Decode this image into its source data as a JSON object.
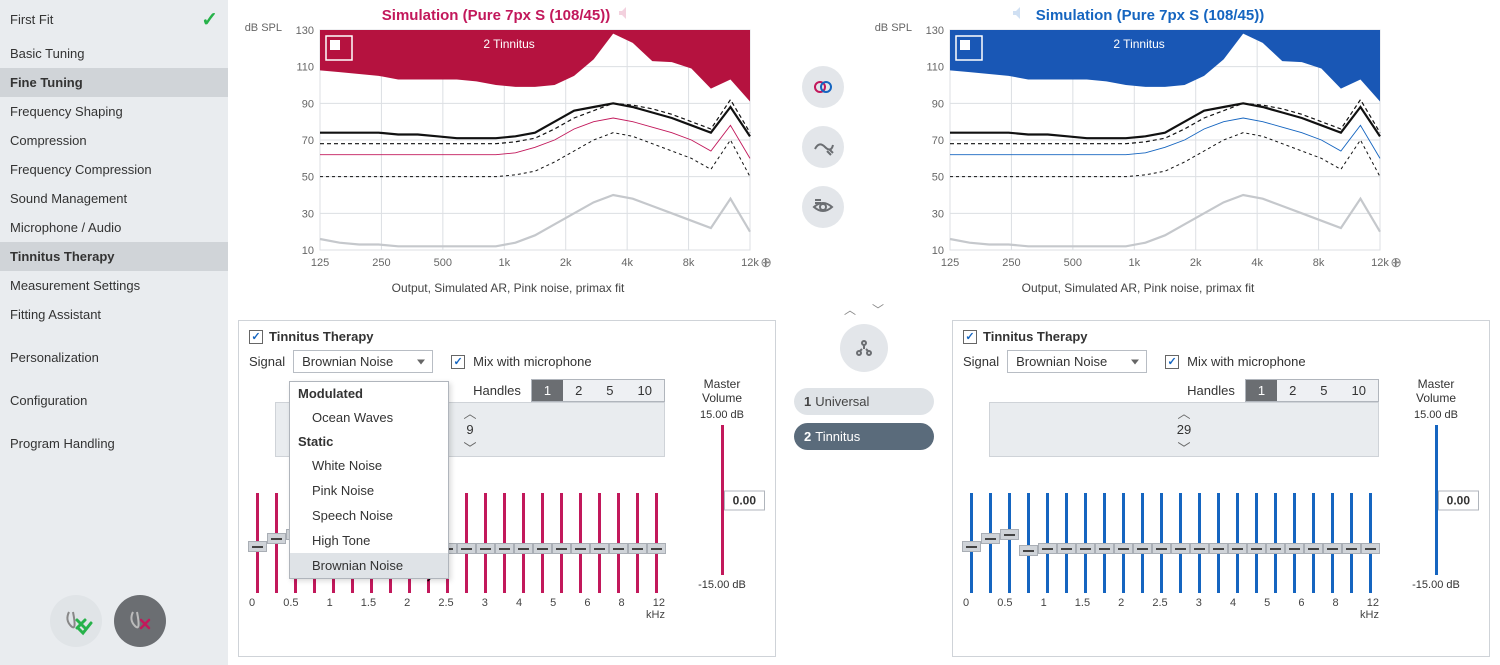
{
  "sidebar": {
    "items": [
      {
        "label": "First Fit",
        "bold": false,
        "selected": false,
        "check": true
      },
      {
        "label": "Basic Tuning",
        "bold": false,
        "selected": false
      },
      {
        "label": "Fine Tuning",
        "bold": true,
        "selected": true
      },
      {
        "label": "Frequency Shaping"
      },
      {
        "label": "Compression"
      },
      {
        "label": "Frequency Compression"
      },
      {
        "label": "Sound Management"
      },
      {
        "label": "Microphone / Audio"
      },
      {
        "label": "Tinnitus Therapy",
        "bold": true,
        "selected": true
      },
      {
        "label": "Measurement Settings"
      },
      {
        "label": "Fitting Assistant"
      },
      {
        "label": "Personalization",
        "spaced": true
      },
      {
        "label": "Configuration",
        "spaced": true
      },
      {
        "label": "Program Handling",
        "spaced": true
      }
    ]
  },
  "charts": {
    "left": {
      "title": "Simulation (Pure 7px S (108/45))",
      "title_color": "#c2185b",
      "accent": "#c2185b",
      "ylabel": "dB SPL",
      "yticks": [
        130,
        110,
        90,
        70,
        50,
        30,
        10
      ],
      "xticks": [
        "125",
        "250",
        "500",
        "1k",
        "2k",
        "4k",
        "8k",
        "12k"
      ],
      "xunit": "Hz",
      "badge": "2 Tinnitus",
      "caption": "Output, Simulated AR, Pink noise, primax fit",
      "fill_color": "#b5123f",
      "grid_color": "#dcdfe3",
      "background": "#ffffff",
      "overlay_color": "#c5c8cc",
      "fill_curve": [
        108,
        107,
        106,
        105,
        103,
        103,
        103,
        103,
        102,
        100,
        99,
        99,
        100,
        105,
        114,
        128,
        123,
        113,
        112.5,
        109,
        98,
        103,
        91
      ],
      "curves": [
        {
          "color": "#111",
          "width": 2.2,
          "dash": "",
          "y": [
            74,
            74,
            74,
            74,
            73,
            73,
            72,
            71,
            71,
            71,
            72,
            74,
            80,
            86,
            88,
            90,
            88,
            85,
            82,
            78,
            74,
            88,
            72
          ]
        },
        {
          "color": "#111",
          "width": 1.2,
          "dash": "4 3",
          "y": [
            68,
            68,
            68,
            68,
            68,
            68,
            68,
            68,
            68,
            68,
            69,
            71,
            76,
            82,
            86,
            90,
            89,
            87,
            84,
            80,
            76,
            92,
            74
          ]
        },
        {
          "color": "#c2185b",
          "width": 0.9,
          "dash": "",
          "y": [
            62,
            62,
            62,
            62,
            62,
            62,
            62,
            62,
            62,
            62,
            63,
            66,
            70,
            76,
            80,
            82,
            80,
            77,
            74,
            70,
            64,
            78,
            60
          ]
        },
        {
          "color": "#111",
          "width": 1.0,
          "dash": "3 3",
          "y": [
            50,
            50,
            50,
            50,
            50,
            50,
            50,
            50,
            50,
            50,
            51,
            53,
            58,
            64,
            70,
            74,
            72,
            68,
            64,
            60,
            54,
            70,
            50
          ]
        },
        {
          "color": "#c5c8cc",
          "width": 2.2,
          "dash": "",
          "y": [
            16,
            14,
            13,
            13,
            12,
            12,
            12,
            12,
            12,
            12,
            14,
            18,
            24,
            30,
            36,
            40,
            38,
            34,
            30,
            26,
            22,
            38,
            20
          ]
        }
      ]
    },
    "right": {
      "title": "Simulation (Pure 7px S (108/45))",
      "title_color": "#1565c0",
      "accent": "#1565c0",
      "ylabel": "dB SPL",
      "yticks": [
        130,
        110,
        90,
        70,
        50,
        30,
        10
      ],
      "xticks": [
        "125",
        "250",
        "500",
        "1k",
        "2k",
        "4k",
        "8k",
        "12k"
      ],
      "xunit": "Hz",
      "badge": "2 Tinnitus",
      "caption": "Output, Simulated AR, Pink noise, primax fit",
      "fill_color": "#1957b5",
      "grid_color": "#dcdfe3",
      "background": "#ffffff",
      "overlay_color": "#c5c8cc",
      "fill_curve": [
        108,
        107,
        106,
        105,
        103,
        103,
        103,
        103,
        102,
        100,
        99,
        99,
        100,
        105,
        114,
        128,
        123,
        113,
        112.5,
        109,
        98,
        103,
        91
      ],
      "curves": [
        {
          "color": "#111",
          "width": 2.2,
          "dash": "",
          "y": [
            74,
            74,
            74,
            74,
            73,
            73,
            72,
            71,
            71,
            71,
            72,
            74,
            80,
            86,
            88,
            90,
            88,
            85,
            82,
            78,
            74,
            88,
            72
          ]
        },
        {
          "color": "#111",
          "width": 1.2,
          "dash": "4 3",
          "y": [
            68,
            68,
            68,
            68,
            68,
            68,
            68,
            68,
            68,
            68,
            69,
            71,
            76,
            82,
            86,
            90,
            89,
            87,
            84,
            80,
            76,
            92,
            74
          ]
        },
        {
          "color": "#1565c0",
          "width": 0.9,
          "dash": "",
          "y": [
            62,
            62,
            62,
            62,
            62,
            62,
            62,
            62,
            62,
            62,
            63,
            66,
            70,
            76,
            80,
            82,
            80,
            77,
            74,
            70,
            64,
            78,
            60
          ]
        },
        {
          "color": "#111",
          "width": 1.0,
          "dash": "3 3",
          "y": [
            50,
            50,
            50,
            50,
            50,
            50,
            50,
            50,
            50,
            50,
            51,
            53,
            58,
            64,
            70,
            74,
            72,
            68,
            64,
            60,
            54,
            70,
            50
          ]
        },
        {
          "color": "#c5c8cc",
          "width": 2.2,
          "dash": "",
          "y": [
            16,
            14,
            13,
            13,
            12,
            12,
            12,
            12,
            12,
            12,
            14,
            18,
            24,
            30,
            36,
            40,
            38,
            34,
            30,
            26,
            22,
            38,
            20
          ]
        }
      ]
    }
  },
  "center_tools": {
    "icons": [
      "couple-icon",
      "adjust-icon",
      "view-icon"
    ]
  },
  "programs": {
    "icon": "program-icon",
    "list": [
      {
        "num": "1",
        "label": "Universal",
        "active": false
      },
      {
        "num": "2",
        "label": "Tinnitus",
        "active": true
      }
    ]
  },
  "panel_left": {
    "title": "Tinnitus Therapy",
    "checked": true,
    "signal_label": "Signal",
    "signal_value": "Brownian Noise",
    "mix_label": "Mix with microphone",
    "mix_checked": true,
    "handles_label": "Handles",
    "handles_options": [
      "1",
      "2",
      "5",
      "10"
    ],
    "handles_active": "1",
    "stepper_value": "9",
    "xticks": [
      "0",
      "0.5",
      "1",
      "1.5",
      "2",
      "2.5",
      "3",
      "4",
      "5",
      "6",
      "8",
      "12"
    ],
    "xunit": "kHz",
    "slider_color": "#c2185b",
    "handle_count": 22,
    "handle_positions": [
      48,
      40,
      36,
      52,
      50,
      50,
      50,
      50,
      50,
      50,
      50,
      50,
      50,
      50,
      50,
      50,
      50,
      50,
      50,
      50,
      50,
      50
    ],
    "master": {
      "label": "Master Volume",
      "max": "15.00 dB",
      "min": "-15.00 dB",
      "value": "0.00"
    },
    "dropdown": {
      "visible": true,
      "groups": [
        {
          "header": "Modulated",
          "items": [
            "Ocean Waves"
          ]
        },
        {
          "header": "Static",
          "items": [
            "White Noise",
            "Pink Noise",
            "Speech Noise",
            "High Tone",
            "Brownian Noise"
          ]
        }
      ],
      "hover": "Brownian Noise"
    }
  },
  "panel_right": {
    "title": "Tinnitus Therapy",
    "checked": true,
    "signal_label": "Signal",
    "signal_value": "Brownian Noise",
    "mix_label": "Mix with microphone",
    "mix_checked": true,
    "handles_label": "Handles",
    "handles_options": [
      "1",
      "2",
      "5",
      "10"
    ],
    "handles_active": "1",
    "stepper_value": "29",
    "xticks": [
      "0",
      "0.5",
      "1",
      "1.5",
      "2",
      "2.5",
      "3",
      "4",
      "5",
      "6",
      "8",
      "12"
    ],
    "xunit": "kHz",
    "slider_color": "#1565c0",
    "handle_count": 22,
    "handle_positions": [
      48,
      40,
      36,
      52,
      50,
      50,
      50,
      50,
      50,
      50,
      50,
      50,
      50,
      50,
      50,
      50,
      50,
      50,
      50,
      50,
      50,
      50
    ],
    "master": {
      "label": "Master Volume",
      "max": "15.00 dB",
      "min": "-15.00 dB",
      "value": "0.00"
    }
  }
}
